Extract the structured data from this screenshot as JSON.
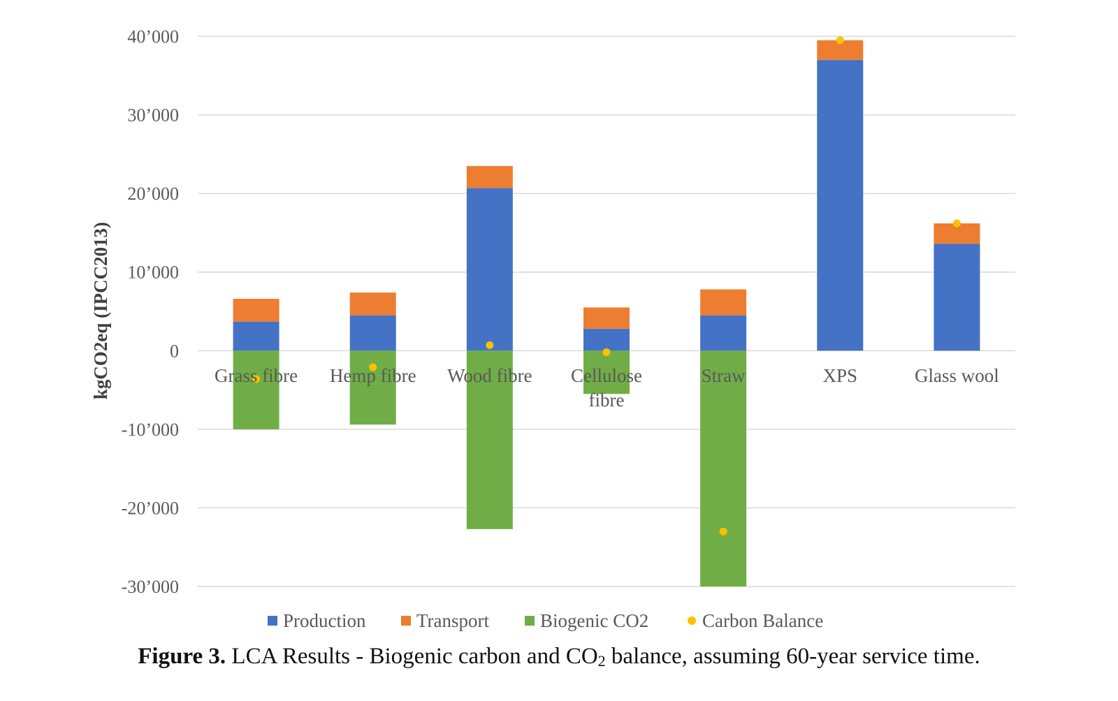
{
  "chart_data": {
    "type": "bar",
    "stacked": true,
    "categories": [
      [
        "Grass fibre"
      ],
      [
        "Hemp fibre"
      ],
      [
        "Wood fibre"
      ],
      [
        "Cellulose",
        "fibre"
      ],
      [
        "Straw"
      ],
      [
        "XPS"
      ],
      [
        "Glass wool"
      ]
    ],
    "series": [
      {
        "name": "Production",
        "color": "#4472C4",
        "values": [
          3700,
          4500,
          20700,
          2800,
          4500,
          37000,
          13600
        ]
      },
      {
        "name": "Transport",
        "color": "#ED7D31",
        "values": [
          2900,
          2900,
          2800,
          2700,
          3300,
          2500,
          2600
        ]
      },
      {
        "name": "Biogenic CO2",
        "color": "#70AD47",
        "values": [
          -10000,
          -9400,
          -22700,
          -5500,
          -30000,
          0,
          0
        ]
      }
    ],
    "points": {
      "name": "Carbon Balance",
      "color": "#FFC000",
      "values": [
        -3600,
        -2100,
        700,
        -200,
        -23000,
        39500,
        16200
      ]
    },
    "yticks": [
      40000,
      30000,
      20000,
      10000,
      0,
      -10000,
      -20000,
      -30000
    ],
    "ytick_labels": [
      "40’000",
      "30’000",
      "20’000",
      "10’000",
      "0",
      "-10’000",
      "-20’000",
      "-30’000"
    ],
    "ylim": [
      -30000,
      40000
    ],
    "ylabel": "kgCO2eq (IPCC2013)",
    "xlabel": "",
    "grid": true,
    "legend_position": "bottom"
  },
  "caption": {
    "label": "Figure 3.",
    "text_before": " LCA Results - Biogenic carbon and CO",
    "subscript": "2",
    "text_after": " balance, assuming 60-year service time."
  }
}
